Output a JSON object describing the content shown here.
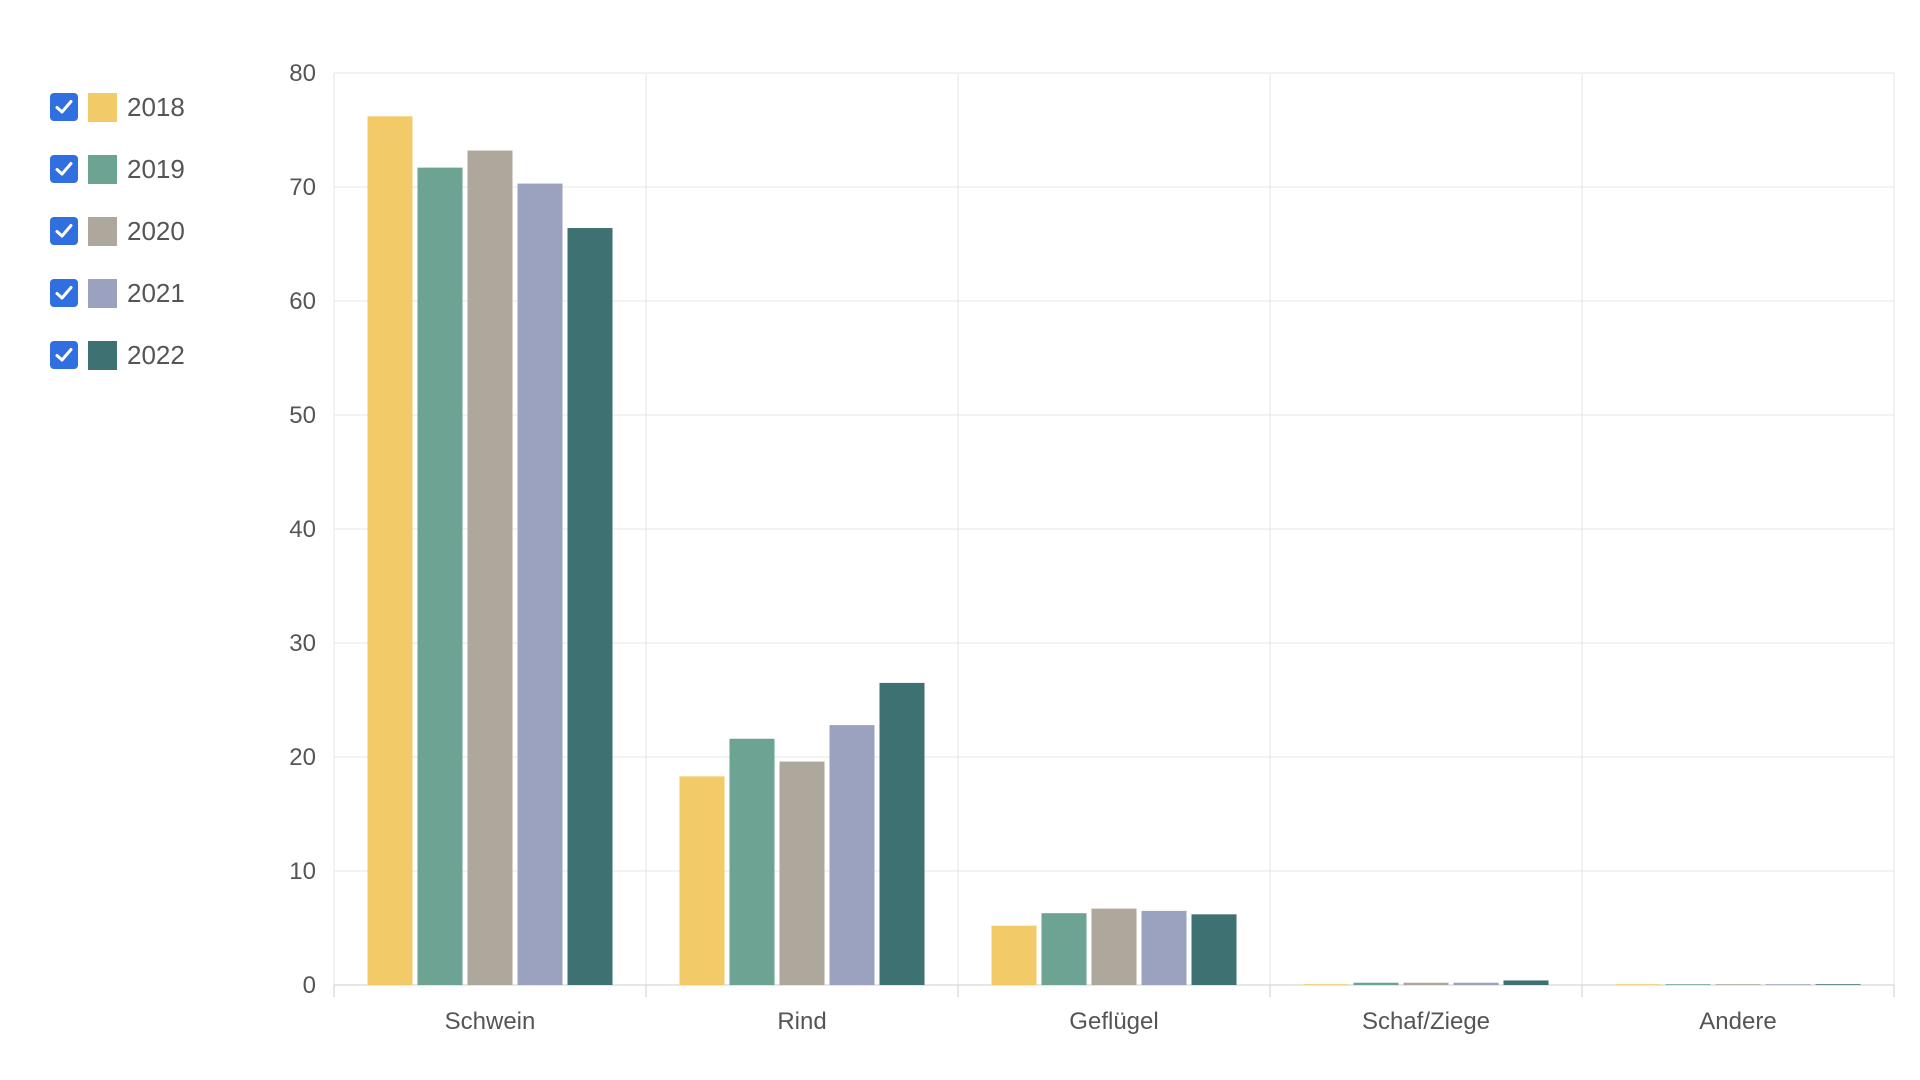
{
  "chart_data": {
    "type": "bar",
    "title": "",
    "xlabel": "",
    "ylabel": "",
    "categories": [
      "Schwein",
      "Rind",
      "Geflügel",
      "Schaf/Ziege",
      "Andere"
    ],
    "ylim": [
      0,
      80
    ],
    "yticks": [
      0,
      10,
      20,
      30,
      40,
      50,
      60,
      70,
      80
    ],
    "grid": true,
    "legend_position": "left",
    "series": [
      {
        "name": "2018",
        "color": "#f2ca68",
        "values": [
          76.2,
          18.3,
          5.2,
          0.05,
          0.02
        ]
      },
      {
        "name": "2019",
        "color": "#6ca392",
        "values": [
          71.7,
          21.6,
          6.3,
          0.2,
          0.02
        ]
      },
      {
        "name": "2020",
        "color": "#aea79b",
        "values": [
          73.2,
          19.6,
          6.7,
          0.2,
          0.02
        ]
      },
      {
        "name": "2021",
        "color": "#9aa2bf",
        "values": [
          70.3,
          22.8,
          6.5,
          0.2,
          0.02
        ]
      },
      {
        "name": "2022",
        "color": "#3e7272",
        "values": [
          66.4,
          26.5,
          6.2,
          0.4,
          0.05
        ]
      }
    ]
  }
}
